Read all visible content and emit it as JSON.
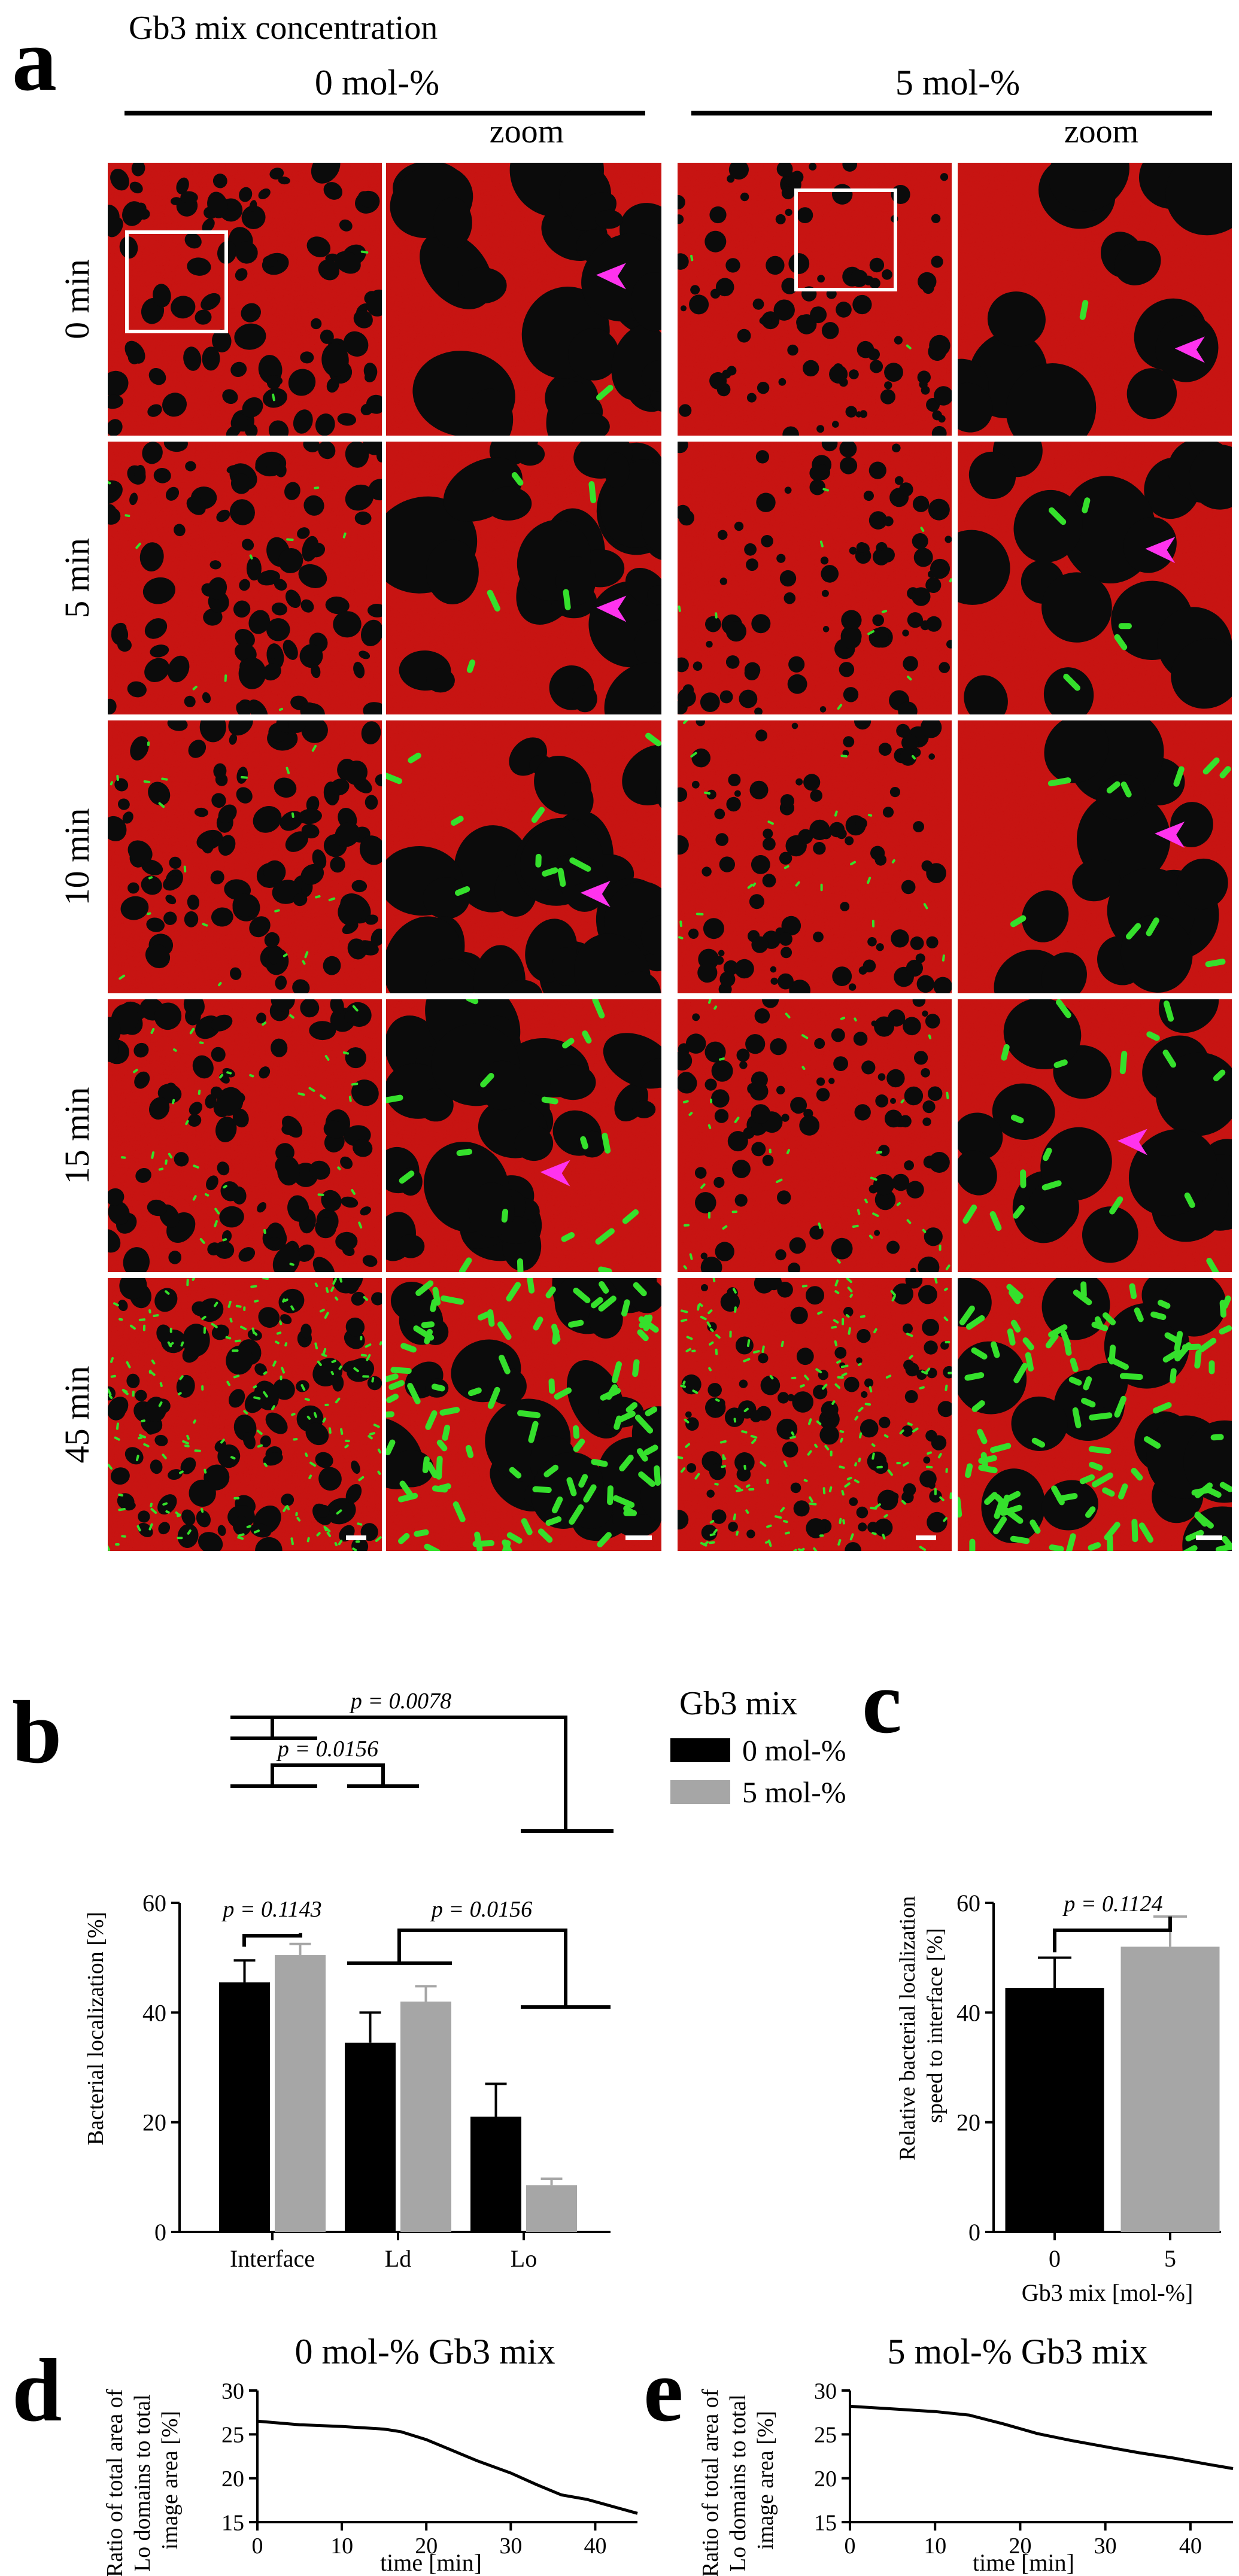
{
  "panel_a": {
    "letter": "a",
    "heading": "Gb3 mix concentration",
    "groups": [
      "0 mol-%",
      "5 mol-%"
    ],
    "zoom_label": "zoom",
    "time_labels": [
      "0 min",
      "5 min",
      "10 min",
      "15 min",
      "45 min"
    ],
    "colors": {
      "membrane": "#c8110f",
      "domain": "#0b0b0b",
      "bacteria": "#35e02c",
      "arrow": "#ff33ee"
    }
  },
  "chart_data": [
    {
      "id": "b",
      "type": "bar",
      "categories": [
        "Interface",
        "Ld",
        "Lo"
      ],
      "series": [
        {
          "name": "0 mol-%",
          "values": [
            45.5,
            34.5,
            21
          ],
          "errors": [
            4,
            5.5,
            6
          ],
          "color": "#000000"
        },
        {
          "name": "5 mol-%",
          "values": [
            50.5,
            42,
            8.5
          ],
          "errors": [
            2,
            2.8,
            1.2
          ],
          "color": "#a6a6a6"
        }
      ],
      "xlabel": "",
      "ylabel": "Bacterial localization [%]",
      "ylim": [
        0,
        60
      ],
      "yticks": [
        0,
        20,
        40,
        60
      ],
      "legend": {
        "title": "Gb3 mix",
        "placement": "right"
      },
      "annotations": [
        "p = 0.1143",
        "p = 0.0156",
        "p = 0.0156",
        "p = 0.0078"
      ]
    },
    {
      "id": "c",
      "type": "bar",
      "categories": [
        "0",
        "5"
      ],
      "values": [
        44.5,
        52
      ],
      "errors": [
        5.5,
        5.5
      ],
      "colors": [
        "#000000",
        "#a6a6a6"
      ],
      "xlabel": "Gb3 mix [mol-%]",
      "ylabel": "Relative bacterial localization speed to interface [%]",
      "ylim": [
        0,
        60
      ],
      "yticks": [
        0,
        20,
        40,
        60
      ],
      "annotations": [
        "p = 0.1124"
      ]
    },
    {
      "id": "d",
      "type": "line",
      "title": "0 mol-% Gb3 mix",
      "xlabel": "time [min]",
      "ylabel": "Ratio of total area of Lo domains to total image area [%]",
      "xlim": [
        0,
        45
      ],
      "ylim": [
        15,
        30
      ],
      "xticks": [
        0,
        10,
        20,
        30,
        40
      ],
      "yticks": [
        15,
        20,
        25,
        30
      ],
      "x": [
        0,
        5,
        10,
        15,
        17,
        20,
        23,
        26,
        30,
        33,
        36,
        39,
        42,
        45
      ],
      "y": [
        26.5,
        26.1,
        25.9,
        25.6,
        25.3,
        24.4,
        23.2,
        22.0,
        20.6,
        19.3,
        18.1,
        17.6,
        16.8,
        16.0
      ]
    },
    {
      "id": "e",
      "type": "line",
      "title": "5 mol-% Gb3 mix",
      "xlabel": "time [min]",
      "ylabel": "Ratio of total area of Lo domains to total image area [%]",
      "xlim": [
        0,
        45
      ],
      "ylim": [
        15,
        30
      ],
      "xticks": [
        0,
        10,
        20,
        30,
        40
      ],
      "yticks": [
        15,
        20,
        25,
        30
      ],
      "x": [
        0,
        5,
        10,
        14,
        18,
        22,
        26,
        30,
        34,
        38,
        42,
        45
      ],
      "y": [
        28.2,
        27.9,
        27.6,
        27.2,
        26.2,
        25.1,
        24.3,
        23.6,
        22.9,
        22.3,
        21.6,
        21.1
      ]
    }
  ],
  "panel_letters": {
    "b": "b",
    "c": "c",
    "d": "d",
    "e": "e"
  }
}
